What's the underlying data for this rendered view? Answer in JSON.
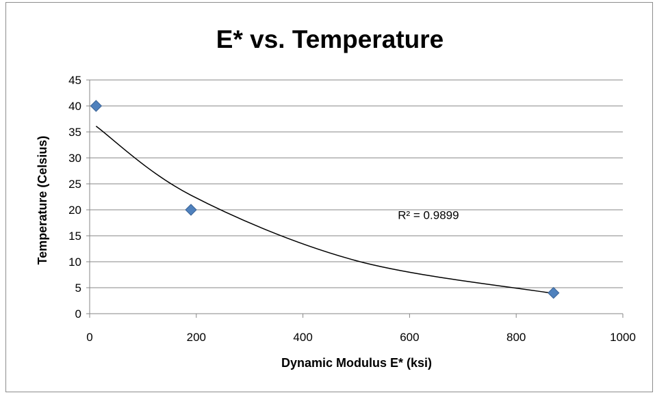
{
  "chart_data": {
    "type": "scatter",
    "title": "E* vs. Temperature",
    "xlabel": "Dynamic Modulus E* (ksi)",
    "ylabel": "Temperature (Celsius)",
    "xlim": [
      0,
      1000
    ],
    "ylim": [
      0,
      45
    ],
    "xticks": [
      0,
      200,
      400,
      600,
      800,
      1000
    ],
    "yticks": [
      0,
      5,
      10,
      15,
      20,
      25,
      30,
      35,
      40,
      45
    ],
    "grid": "horizontal",
    "legend": "none",
    "series": [
      {
        "marker": "diamond",
        "color": "#4F81BD",
        "x": [
          12,
          190,
          870
        ],
        "y": [
          40,
          20,
          4
        ]
      }
    ],
    "trendline": {
      "type": "power",
      "color": "#000000",
      "x_range": [
        12,
        870
      ],
      "points": [
        {
          "x": 12,
          "y": 36.1
        },
        {
          "x": 190,
          "y": 22.8
        },
        {
          "x": 500,
          "y": 10.2
        },
        {
          "x": 870,
          "y": 3.9
        }
      ],
      "label": "R² = 0.9899",
      "label_anchor": {
        "x": 578,
        "y": 19
      }
    }
  }
}
